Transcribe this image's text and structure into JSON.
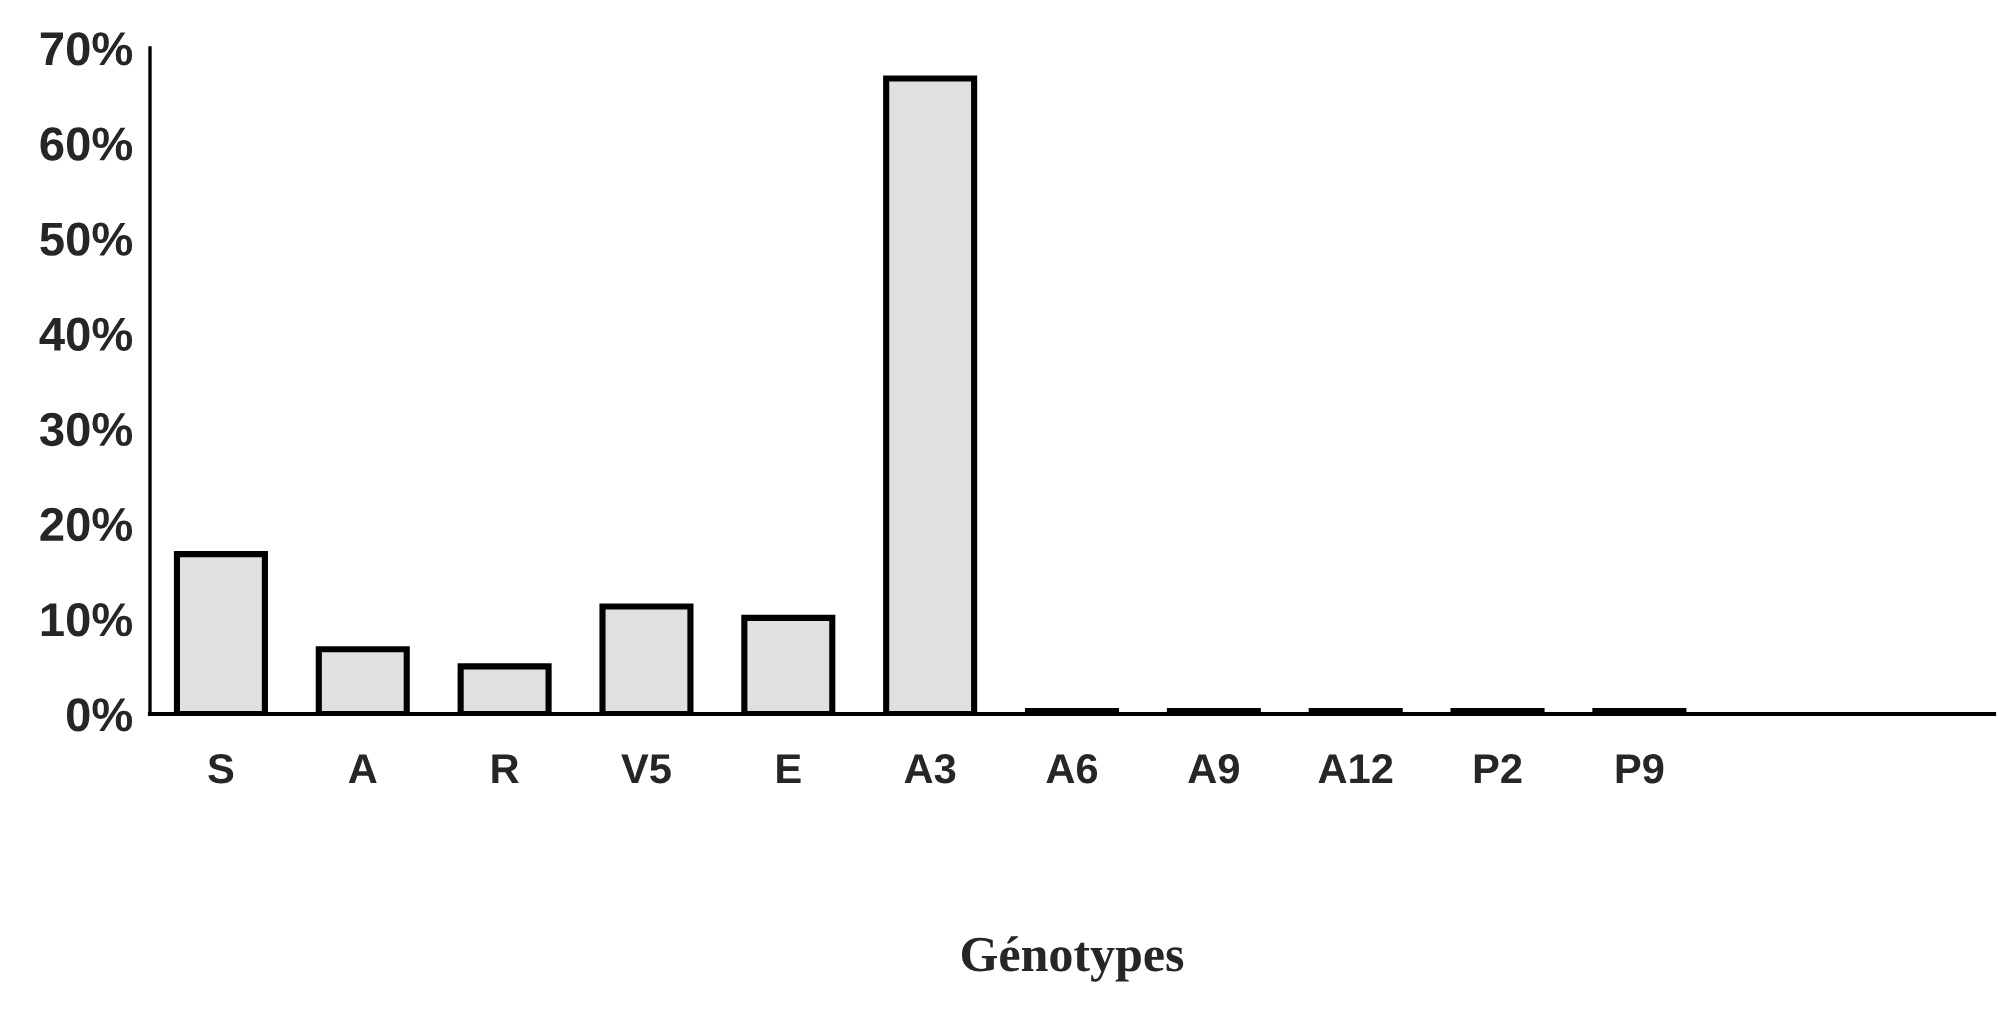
{
  "chart_data": {
    "type": "bar",
    "xlabel": "Génotypes",
    "categories": [
      "S",
      "A",
      "R",
      "V5",
      "E",
      "A3",
      "A6",
      "A9",
      "A12",
      "P2",
      "P9",
      null,
      null
    ],
    "values": [
      16.8,
      6.8,
      5.0,
      11.3,
      10.1,
      66.8,
      0.3,
      0.3,
      0.3,
      0.3,
      0.3,
      null,
      null
    ],
    "color": "#e0e0e0",
    "ylim": [
      0,
      70
    ],
    "yticks": [
      {
        "value": 0,
        "label": "0%"
      },
      {
        "value": 10,
        "label": "10%"
      },
      {
        "value": 20,
        "label": "20%"
      },
      {
        "value": 30,
        "label": "30%"
      },
      {
        "value": 40,
        "label": "40%"
      },
      {
        "value": 50,
        "label": "50%"
      },
      {
        "value": 60,
        "label": "60%"
      },
      {
        "value": 70,
        "label": "70%"
      }
    ],
    "grid": false,
    "legend": false
  }
}
